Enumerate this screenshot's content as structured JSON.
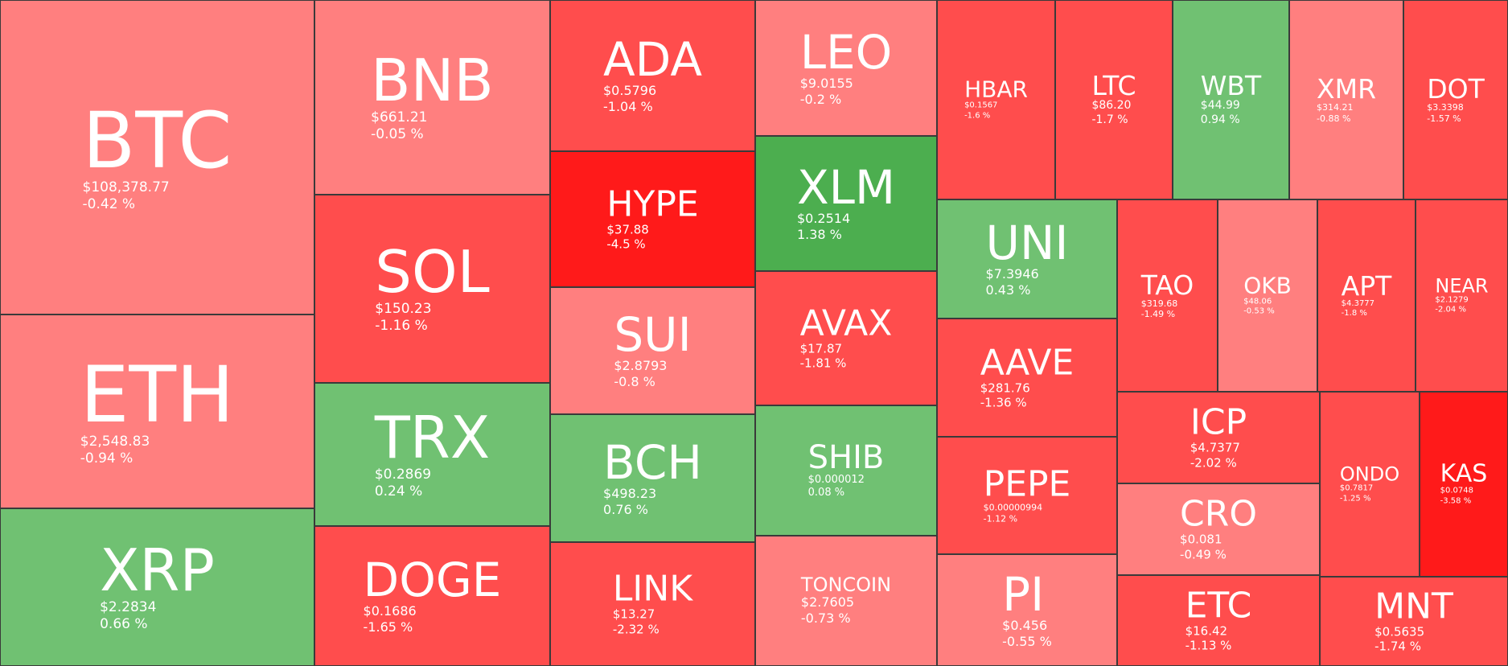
{
  "tiles": [
    {
      "symbol": "BTC",
      "price": "$108,378.77",
      "change": "-0.42 %"
    },
    {
      "symbol": "ETH",
      "price": "$2,548.83",
      "change": "-0.94 %"
    },
    {
      "symbol": "XRP",
      "price": "$2.2834",
      "change": "0.66 %"
    },
    {
      "symbol": "BNB",
      "price": "$661.21",
      "change": "-0.05 %"
    },
    {
      "symbol": "SOL",
      "price": "$150.23",
      "change": "-1.16 %"
    },
    {
      "symbol": "TRX",
      "price": "$0.2869",
      "change": "0.24 %"
    },
    {
      "symbol": "DOGE",
      "price": "$0.1686",
      "change": "-1.65 %"
    },
    {
      "symbol": "ADA",
      "price": "$0.5796",
      "change": "-1.04 %"
    },
    {
      "symbol": "HYPE",
      "price": "$37.88",
      "change": "-4.5 %"
    },
    {
      "symbol": "SUI",
      "price": "$2.8793",
      "change": "-0.8 %"
    },
    {
      "symbol": "BCH",
      "price": "$498.23",
      "change": "0.76 %"
    },
    {
      "symbol": "LINK",
      "price": "$13.27",
      "change": "-2.32 %"
    },
    {
      "symbol": "LEO",
      "price": "$9.0155",
      "change": "-0.2 %"
    },
    {
      "symbol": "XLM",
      "price": "$0.2514",
      "change": "1.38 %"
    },
    {
      "symbol": "AVAX",
      "price": "$17.87",
      "change": "-1.81 %"
    },
    {
      "symbol": "SHIB",
      "price": "$0.000012",
      "change": "0.08 %"
    },
    {
      "symbol": "TONCOIN",
      "price": "$2.7605",
      "change": "-0.73 %"
    },
    {
      "symbol": "HBAR",
      "price": "$0.1567",
      "change": "-1.6 %"
    },
    {
      "symbol": "LTC",
      "price": "$86.20",
      "change": "-1.7 %"
    },
    {
      "symbol": "WBT",
      "price": "$44.99",
      "change": "0.94 %"
    },
    {
      "symbol": "XMR",
      "price": "$314.21",
      "change": "-0.88 %"
    },
    {
      "symbol": "DOT",
      "price": "$3.3398",
      "change": "-1.57 %"
    },
    {
      "symbol": "UNI",
      "price": "$7.3946",
      "change": "0.43 %"
    },
    {
      "symbol": "AAVE",
      "price": "$281.76",
      "change": "-1.36 %"
    },
    {
      "symbol": "PEPE",
      "price": "$0.00000994",
      "change": "-1.12 %"
    },
    {
      "symbol": "PI",
      "price": "$0.456",
      "change": "-0.55 %"
    },
    {
      "symbol": "TAO",
      "price": "$319.68",
      "change": "-1.49 %"
    },
    {
      "symbol": "OKB",
      "price": "$48.06",
      "change": "-0.53 %"
    },
    {
      "symbol": "APT",
      "price": "$4.3777",
      "change": "-1.8 %"
    },
    {
      "symbol": "NEAR",
      "price": "$2.1279",
      "change": "-2.04 %"
    },
    {
      "symbol": "ICP",
      "price": "$4.7377",
      "change": "-2.02 %"
    },
    {
      "symbol": "CRO",
      "price": "$0.081",
      "change": "-0.49 %"
    },
    {
      "symbol": "ETC",
      "price": "$16.42",
      "change": "-1.13 %"
    },
    {
      "symbol": "ONDO",
      "price": "$0.7817",
      "change": "-1.25 %"
    },
    {
      "symbol": "KAS",
      "price": "$0.0748",
      "change": "-3.58 %"
    },
    {
      "symbol": "MNT",
      "price": "$0.5635",
      "change": "-1.74 %"
    }
  ]
}
